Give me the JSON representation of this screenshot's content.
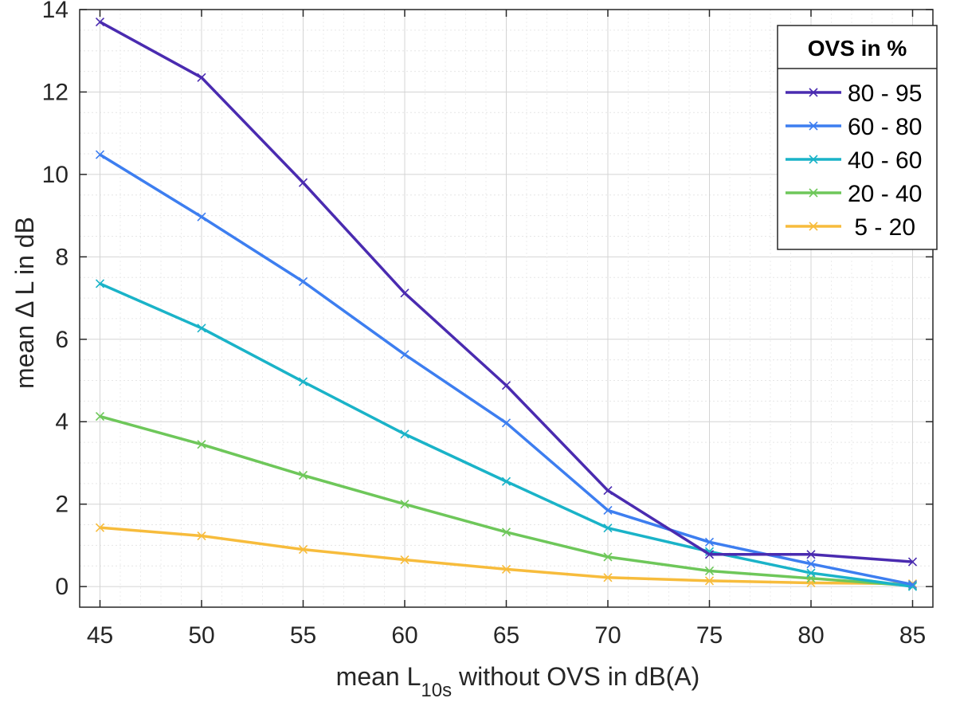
{
  "chart_data": {
    "type": "line",
    "title": "",
    "xlabel_main": "mean L",
    "xlabel_sub": "10s",
    "xlabel_rest": " without OVS in dB(A)",
    "ylabel": "mean Δ L in dB",
    "x": [
      45,
      50,
      55,
      60,
      65,
      70,
      75,
      80,
      85
    ],
    "xlim": [
      44,
      86
    ],
    "ylim": [
      -0.5,
      14
    ],
    "xticks": [
      45,
      50,
      55,
      60,
      65,
      70,
      75,
      80,
      85
    ],
    "yticks": [
      0,
      2,
      4,
      6,
      8,
      10,
      12,
      14
    ],
    "grid": true,
    "legend_title": "OVS in %",
    "legend_position": "top-right",
    "series": [
      {
        "name": "80 - 95",
        "color": "#4a2bb0",
        "values": [
          13.7,
          12.35,
          9.8,
          7.12,
          4.88,
          2.33,
          0.78,
          0.78,
          0.6
        ]
      },
      {
        "name": "60 - 80",
        "color": "#3d7ef0",
        "values": [
          10.48,
          8.97,
          7.4,
          5.63,
          3.97,
          1.85,
          1.08,
          0.55,
          0.05
        ]
      },
      {
        "name": "40 - 60",
        "color": "#1ab3c8",
        "values": [
          7.35,
          6.27,
          4.97,
          3.7,
          2.55,
          1.42,
          0.85,
          0.33,
          0.0
        ]
      },
      {
        "name": "20 - 40",
        "color": "#6ec75a",
        "values": [
          4.13,
          3.45,
          2.7,
          2.0,
          1.32,
          0.72,
          0.38,
          0.2,
          0.02
        ]
      },
      {
        "name": " 5 - 20",
        "color": "#f7bc3c",
        "values": [
          1.43,
          1.23,
          0.9,
          0.65,
          0.42,
          0.22,
          0.14,
          0.09,
          0.07
        ]
      }
    ]
  }
}
